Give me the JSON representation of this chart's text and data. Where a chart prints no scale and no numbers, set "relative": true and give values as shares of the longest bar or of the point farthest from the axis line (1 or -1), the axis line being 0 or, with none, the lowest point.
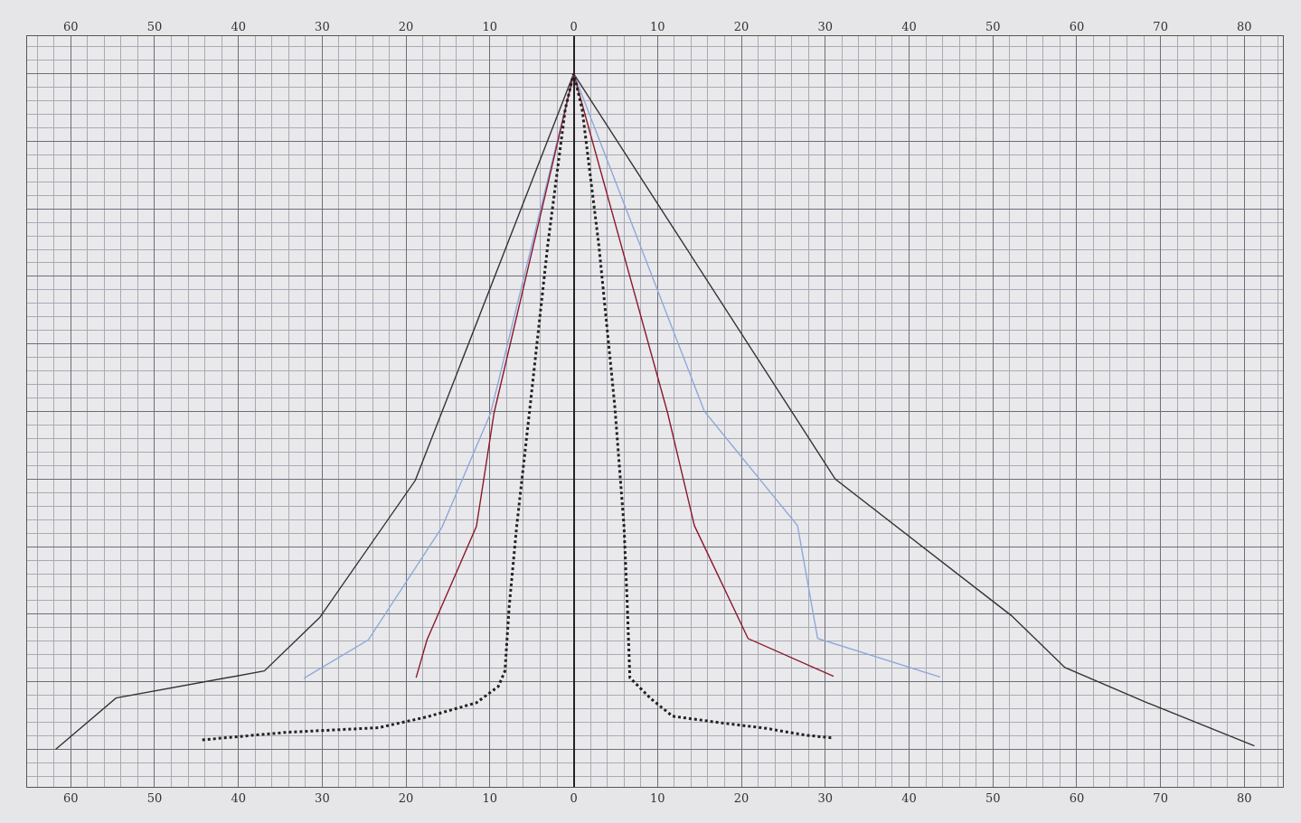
{
  "chart_data": {
    "type": "line",
    "relative": true,
    "marker": "none",
    "grid": true,
    "xlim": [
      -65.2,
      84.6
    ],
    "xticks": [
      {
        "value": -60,
        "label": "60"
      },
      {
        "value": -50,
        "label": "50"
      },
      {
        "value": -40,
        "label": "40"
      },
      {
        "value": -30,
        "label": "30"
      },
      {
        "value": -20,
        "label": "20"
      },
      {
        "value": -10,
        "label": "10"
      },
      0,
      10,
      20,
      30,
      40,
      50,
      60,
      70,
      80
    ],
    "x2lim": [
      -65.2,
      84.6
    ],
    "x2ticks": [
      {
        "value": -60,
        "label": "60"
      },
      {
        "value": -50,
        "label": "50"
      },
      {
        "value": -40,
        "label": "40"
      },
      {
        "value": -30,
        "label": "30"
      },
      {
        "value": -20,
        "label": "20"
      },
      {
        "value": -10,
        "label": "10"
      },
      0,
      10,
      20,
      30,
      40,
      50,
      60,
      70,
      80
    ],
    "series": [
      {
        "color": "#333333",
        "line_style": "solid",
        "x": [
          -61.8,
          -54.6,
          -36.9,
          -30.3,
          -18.9,
          0,
          31.2,
          52.2,
          58.6,
          68.4,
          81.2
        ],
        "values": [
          0,
          0.076,
          0.116,
          0.195,
          0.398,
          1,
          0.4,
          0.198,
          0.121,
          0.069,
          0.005
        ]
      },
      {
        "color": "#8fa8d8",
        "line_style": "solid",
        "x": [
          -32.2,
          -24.5,
          -15.7,
          -9.9,
          0,
          15.6,
          26.7,
          29.1,
          43.7
        ],
        "values": [
          0.105,
          0.162,
          0.329,
          0.498,
          1,
          0.5,
          0.331,
          0.164,
          0.107
        ]
      },
      {
        "color": "#8b1a2b",
        "line_style": "solid",
        "x": [
          -18.8,
          -17.5,
          -11.6,
          -9.5,
          0,
          11.2,
          14.4,
          20.8,
          31.0
        ],
        "values": [
          0.106,
          0.162,
          0.33,
          0.498,
          1,
          0.498,
          0.331,
          0.164,
          0.108
        ]
      },
      {
        "color": "#222222",
        "line_style": "dotted",
        "x": [
          -44.3,
          -34.5,
          -23.3,
          -17.5,
          -11.6,
          -9.0,
          -8.2,
          -7.7,
          -6.8,
          -5.2,
          -3.1,
          -1.0,
          0,
          1.0,
          3.0,
          4.9,
          6.0,
          6.4,
          6.7,
          9.2,
          11.8,
          17.7,
          23.0,
          27.6,
          30.8
        ],
        "values": [
          0.014,
          0.025,
          0.032,
          0.048,
          0.069,
          0.093,
          0.116,
          0.211,
          0.33,
          0.508,
          0.746,
          0.948,
          1,
          0.948,
          0.746,
          0.508,
          0.33,
          0.211,
          0.106,
          0.075,
          0.049,
          0.039,
          0.031,
          0.021,
          0.017
        ]
      }
    ]
  }
}
